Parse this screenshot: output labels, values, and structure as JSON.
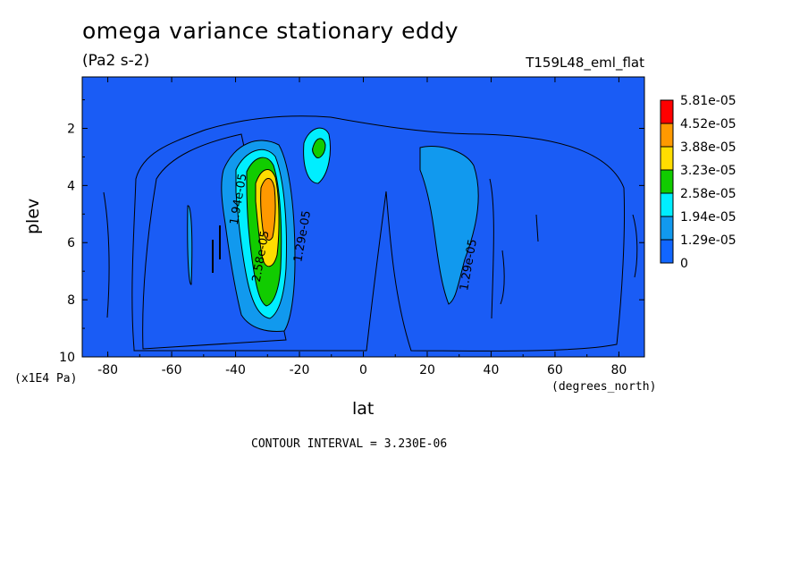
{
  "chart_data": {
    "type": "heatmap",
    "title": "omega variance stationary eddy",
    "units": "(Pa2 s-2)",
    "run_label": "T159L48_eml_flat",
    "xlabel": "lat",
    "ylabel": "plev",
    "xunit": "(degrees_north)",
    "yunit": "(x1E4 Pa)",
    "xlim": [
      -88,
      88
    ],
    "ylim": [
      0.2,
      10
    ],
    "yaxis_inverted": true,
    "xticks": [
      "-80",
      "-60",
      "-40",
      "-20",
      "0",
      "20",
      "40",
      "60",
      "80"
    ],
    "yticks": [
      "2",
      "4",
      "6",
      "8",
      "10"
    ],
    "contour_interval_text": "CONTOUR INTERVAL = 3.230E-06",
    "contour_labels": [
      {
        "text": "1.94e-05",
        "lat": -38,
        "plev": 4.5
      },
      {
        "text": "1.29e-05",
        "lat": -18,
        "plev": 5.8
      },
      {
        "text": "2.58e-05",
        "lat": -31,
        "plev": 6.5
      },
      {
        "text": "1.29e-05",
        "lat": 34,
        "plev": 6.8
      }
    ],
    "legend": {
      "placement": "right",
      "levels": [
        "5.81e-05",
        "4.52e-05",
        "3.88e-05",
        "3.23e-05",
        "2.58e-05",
        "1.94e-05",
        "1.29e-05",
        "0"
      ],
      "colors": [
        "#ff0000",
        "#ff9900",
        "#ffdd00",
        "#11cc00",
        "#00eeff",
        "#1199ee",
        "#1166ff"
      ]
    },
    "background_color": "#1a5cf5"
  }
}
